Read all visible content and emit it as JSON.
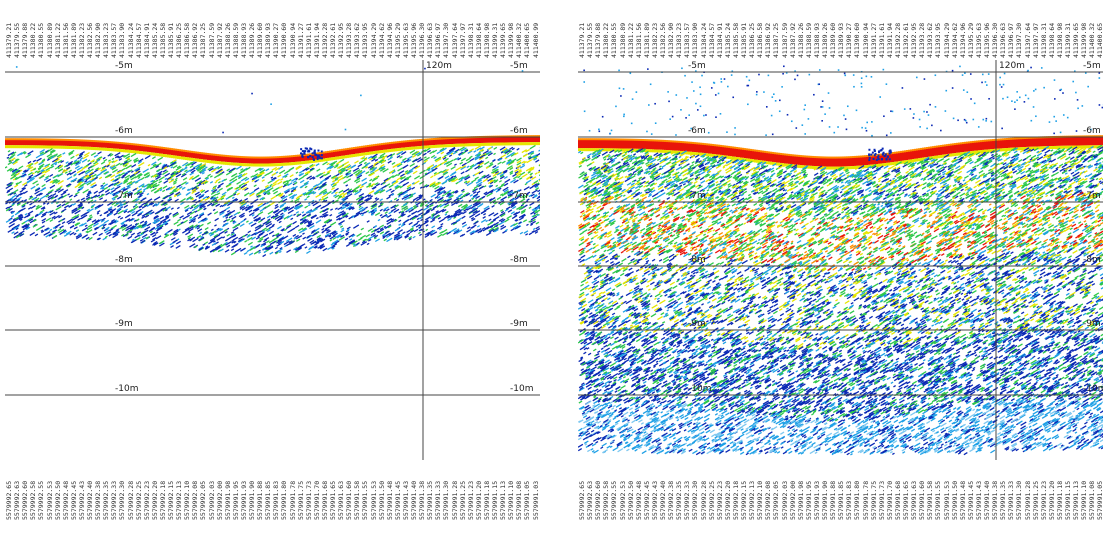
{
  "panels": [
    {
      "id": "left",
      "top_ticks": [
        "411379.21",
        "411379.55",
        "411379.88",
        "411380.22",
        "411380.55",
        "411380.89",
        "411381.22",
        "411381.56",
        "411381.89",
        "411382.23",
        "411382.56",
        "411382.90",
        "411383.23",
        "411383.57",
        "411383.90",
        "411384.24",
        "411384.57",
        "411384.91",
        "411385.24",
        "411385.58",
        "411385.91",
        "411386.25",
        "411386.58",
        "411386.92",
        "411387.25",
        "411387.59",
        "411387.92",
        "411388.26",
        "411388.59",
        "411388.93",
        "411389.26",
        "411389.60",
        "411389.93",
        "411390.27",
        "411390.60",
        "411390.94",
        "411391.27",
        "411391.61",
        "411391.94",
        "411392.28",
        "411392.61",
        "411392.95",
        "411393.28",
        "411393.62",
        "411393.95",
        "411394.29",
        "411394.62",
        "411394.96",
        "411395.29",
        "411395.63",
        "411395.96",
        "411396.30",
        "411396.63",
        "411396.97",
        "411397.30",
        "411397.64",
        "411397.97",
        "411398.31",
        "411398.64",
        "411398.98",
        "411399.31",
        "411399.65",
        "411399.98",
        "411400.32",
        "411400.65",
        "411400.99"
      ],
      "bottom_ticks": [
        "5579992.65",
        "5579992.63",
        "5579992.60",
        "5579992.58",
        "5579992.55",
        "5579992.53",
        "5579992.50",
        "5579992.48",
        "5579992.45",
        "5579992.43",
        "5579992.40",
        "5579992.38",
        "5579992.35",
        "5579992.33",
        "5579992.30",
        "5579992.28",
        "5579992.25",
        "5579992.23",
        "5579992.20",
        "5579992.18",
        "5579992.15",
        "5579992.13",
        "5579992.10",
        "5579992.08",
        "5579992.05",
        "5579992.03",
        "5579992.00",
        "5579991.98",
        "5579991.95",
        "5579991.93",
        "5579991.90",
        "5579991.88",
        "5579991.85",
        "5579991.83",
        "5579991.80",
        "5579991.78",
        "5579991.75",
        "5579991.73",
        "5579991.70",
        "5579991.68",
        "5579991.65",
        "5579991.63",
        "5579991.60",
        "5579991.58",
        "5579991.55",
        "5579991.53",
        "5579991.50",
        "5579991.48",
        "5579991.45",
        "5579991.43",
        "5579991.40",
        "5579991.38",
        "5579991.35",
        "5579991.33",
        "5579991.30",
        "5579991.28",
        "5579991.25",
        "5579991.23",
        "5579991.20",
        "5579991.18",
        "5579991.15",
        "5579991.13",
        "5579991.10",
        "5579991.08",
        "5579991.05",
        "5579991.03"
      ],
      "depth_labels": [
        "-5m",
        "-6m",
        "-7m",
        "-8m",
        "-9m",
        "-10m"
      ],
      "distance_label": "120m",
      "mode": "low-gain"
    },
    {
      "id": "right",
      "top_ticks": [
        "411379.21",
        "411379.55",
        "411379.88",
        "411380.22",
        "411380.55",
        "411380.89",
        "411381.22",
        "411381.56",
        "411381.89",
        "411382.23",
        "411382.56",
        "411382.90",
        "411383.23",
        "411383.57",
        "411383.90",
        "411384.24",
        "411384.57",
        "411384.91",
        "411385.24",
        "411385.58",
        "411385.91",
        "411386.25",
        "411386.58",
        "411386.92",
        "411387.25",
        "411387.59",
        "411387.92",
        "411388.26",
        "411388.59",
        "411388.93",
        "411389.26",
        "411389.60",
        "411389.93",
        "411390.27",
        "411390.60",
        "411390.94",
        "411391.27",
        "411391.61",
        "411391.94",
        "411392.28",
        "411392.61",
        "411392.95",
        "411393.28",
        "411393.62",
        "411393.95",
        "411394.29",
        "411394.62",
        "411394.96",
        "411395.29",
        "411395.63",
        "411395.96",
        "411396.30",
        "411396.63",
        "411396.97",
        "411397.30",
        "411397.64",
        "411397.97",
        "411398.31",
        "411398.64",
        "411398.98",
        "411399.31",
        "411399.65",
        "411399.98",
        "411400.32",
        "411400.65",
        "411400.99"
      ],
      "bottom_ticks": [
        "5579992.65",
        "5579992.63",
        "5579992.60",
        "5579992.58",
        "5579992.55",
        "5579992.53",
        "5579992.50",
        "5579992.48",
        "5579992.45",
        "5579992.43",
        "5579992.40",
        "5579992.38",
        "5579992.35",
        "5579992.33",
        "5579992.30",
        "5579992.28",
        "5579992.25",
        "5579992.23",
        "5579992.20",
        "5579992.18",
        "5579992.15",
        "5579992.13",
        "5579992.10",
        "5579992.08",
        "5579992.05",
        "5579992.03",
        "5579992.00",
        "5579991.98",
        "5579991.95",
        "5579991.93",
        "5579991.90",
        "5579991.88",
        "5579991.85",
        "5579991.83",
        "5579991.80",
        "5579991.78",
        "5579991.75",
        "5579991.73",
        "5579991.70",
        "5579991.68",
        "5579991.65",
        "5579991.63",
        "5579991.60",
        "5579991.58",
        "5579991.55",
        "5579991.53",
        "5579991.50",
        "5579991.48",
        "5579991.45",
        "5579991.43",
        "5579991.40",
        "5579991.38",
        "5579991.35",
        "5579991.33",
        "5579991.30",
        "5579991.28",
        "5579991.25",
        "5579991.23",
        "5579991.20",
        "5579991.18",
        "5579991.15",
        "5579991.13",
        "5579991.10",
        "5579991.08",
        "5579991.05",
        "5579991.03"
      ],
      "depth_labels": [
        "-5m",
        "-6m",
        "-7m",
        "-8m",
        "-9m",
        "-10m"
      ],
      "distance_label": "120m",
      "mode": "high-gain"
    }
  ],
  "colors": {
    "strong": "#e8140a",
    "orange": "#ff8c00",
    "yellow": "#e6e600",
    "green": "#2cc84a",
    "cyan": "#1ea0e6",
    "blue": "#0a28b4",
    "grid": "#444444"
  }
}
